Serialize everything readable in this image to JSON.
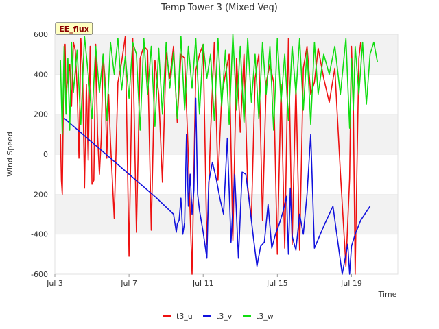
{
  "chart_data": {
    "type": "line",
    "title": "Temp Tower 3 (Mixed Veg)",
    "badge": "EE_flux",
    "xlabel": "Time",
    "ylabel": "Wind Speed",
    "xlim": [
      3,
      21.5
    ],
    "ylim": [
      -600,
      600
    ],
    "x_ticks": [
      3,
      7,
      11,
      15,
      19
    ],
    "x_tick_labels": [
      "Jul 3",
      "Jul 7",
      "Jul 11",
      "Jul 15",
      "Jul 19"
    ],
    "y_ticks": [
      -600,
      -400,
      -200,
      0,
      200,
      400,
      600
    ],
    "y_tick_labels": [
      "-600",
      "-400",
      "-200",
      "0",
      "200",
      "400",
      "600"
    ],
    "grid_bands": true,
    "legend_position": "bottom-center",
    "series": [
      {
        "name": "t3_u",
        "color": "#ee1111",
        "x": [
          3.3,
          3.35,
          3.4,
          3.45,
          3.5,
          3.55,
          3.6,
          3.7,
          3.8,
          3.9,
          4.0,
          4.1,
          4.2,
          4.3,
          4.4,
          4.5,
          4.6,
          4.7,
          4.8,
          4.9,
          5.0,
          5.1,
          5.2,
          5.3,
          5.4,
          5.5,
          5.6,
          5.7,
          5.8,
          5.9,
          6.0,
          6.2,
          6.4,
          6.6,
          6.8,
          7.0,
          7.2,
          7.4,
          7.6,
          7.8,
          8.0,
          8.2,
          8.4,
          8.6,
          8.8,
          9.0,
          9.2,
          9.4,
          9.6,
          9.8,
          10.0,
          10.2,
          10.4,
          10.6,
          10.8,
          11.0,
          11.2,
          11.4,
          11.6,
          11.8,
          12.0,
          12.2,
          12.4,
          12.6,
          12.8,
          13.0,
          13.2,
          13.4,
          13.6,
          13.8,
          14.0,
          14.2,
          14.4,
          14.6,
          14.8,
          15.0,
          15.2,
          15.4,
          15.6,
          15.8,
          16.0,
          16.2,
          16.4,
          16.6,
          16.8,
          17.0,
          17.2,
          17.5,
          17.8,
          18.1,
          18.4,
          18.7,
          18.9,
          19.0,
          19.1,
          19.2,
          19.3,
          19.4,
          19.5
        ],
        "values": [
          100,
          -130,
          -200,
          200,
          370,
          550,
          300,
          380,
          450,
          240,
          560,
          520,
          330,
          -20,
          580,
          400,
          -170,
          350,
          -30,
          540,
          -150,
          -130,
          550,
          100,
          -100,
          80,
          500,
          380,
          -20,
          300,
          60,
          -320,
          360,
          460,
          590,
          -510,
          580,
          -390,
          480,
          540,
          520,
          -380,
          470,
          300,
          -140,
          510,
          380,
          540,
          160,
          500,
          480,
          -10,
          -600,
          420,
          500,
          550,
          -450,
          110,
          560,
          -130,
          290,
          400,
          500,
          -430,
          480,
          110,
          500,
          -160,
          -320,
          380,
          500,
          -330,
          360,
          450,
          360,
          -500,
          350,
          -470,
          580,
          -450,
          360,
          -480,
          430,
          540,
          300,
          360,
          530,
          380,
          260,
          430,
          -90,
          -560,
          -120,
          540,
          250,
          -600,
          -50,
          480,
          560
        ]
      },
      {
        "name": "t3_v",
        "color": "#1111dd",
        "x": [
          3.5,
          4.5,
          5.5,
          6.5,
          7.5,
          8.5,
          9.4,
          9.5,
          9.55,
          9.6,
          9.7,
          9.8,
          9.9,
          10.0,
          10.1,
          10.2,
          10.3,
          10.4,
          10.5,
          10.6,
          10.7,
          10.8,
          11.0,
          11.2,
          11.3,
          11.5,
          11.7,
          11.9,
          12.1,
          12.3,
          12.5,
          12.7,
          12.9,
          13.1,
          13.3,
          13.5,
          13.7,
          13.9,
          14.1,
          14.3,
          14.5,
          14.7,
          14.9,
          15.1,
          15.3,
          15.5,
          15.6,
          15.7,
          15.8,
          16.0,
          16.2,
          16.4,
          16.6,
          16.8,
          17.0,
          17.5,
          18.0,
          18.5,
          18.8,
          18.9,
          19.0,
          19.2,
          19.5,
          20.0
        ],
        "values": [
          180,
          100,
          20,
          -60,
          -140,
          -220,
          -300,
          -360,
          -390,
          -350,
          -330,
          -220,
          -400,
          -340,
          100,
          -260,
          -100,
          -300,
          -180,
          280,
          -200,
          -280,
          -390,
          -520,
          -140,
          -40,
          -120,
          -220,
          -300,
          80,
          -440,
          -100,
          -520,
          -90,
          -100,
          -250,
          -410,
          -560,
          -460,
          -440,
          -250,
          -470,
          -400,
          -350,
          -290,
          -210,
          -500,
          -170,
          -410,
          -480,
          -300,
          -400,
          -200,
          100,
          -470,
          -360,
          -260,
          -600,
          -450,
          -600,
          -460,
          -400,
          -330,
          -260
        ]
      },
      {
        "name": "t3_w",
        "color": "#11dd11",
        "x": [
          3.3,
          3.4,
          3.5,
          3.6,
          3.7,
          3.8,
          3.9,
          4.0,
          4.2,
          4.4,
          4.6,
          4.8,
          5.0,
          5.2,
          5.4,
          5.6,
          5.8,
          6.0,
          6.2,
          6.4,
          6.6,
          6.8,
          7.0,
          7.2,
          7.4,
          7.6,
          7.8,
          8.0,
          8.2,
          8.4,
          8.6,
          8.8,
          9.0,
          9.2,
          9.4,
          9.6,
          9.8,
          10.0,
          10.2,
          10.4,
          10.6,
          10.8,
          11.0,
          11.2,
          11.4,
          11.6,
          11.8,
          12.0,
          12.2,
          12.4,
          12.6,
          12.8,
          13.0,
          13.2,
          13.4,
          13.6,
          13.8,
          14.0,
          14.2,
          14.4,
          14.6,
          14.8,
          15.0,
          15.2,
          15.4,
          15.6,
          15.8,
          16.0,
          16.2,
          16.4,
          16.6,
          16.8,
          17.0,
          17.2,
          17.5,
          17.8,
          18.1,
          18.4,
          18.7,
          18.9,
          19.0,
          19.1,
          19.2,
          19.4,
          19.6,
          19.8,
          20.0,
          20.2,
          20.4
        ],
        "values": [
          470,
          100,
          540,
          200,
          480,
          120,
          560,
          310,
          520,
          150,
          590,
          400,
          180,
          540,
          310,
          500,
          170,
          560,
          400,
          580,
          320,
          490,
          280,
          560,
          500,
          120,
          580,
          300,
          540,
          140,
          530,
          200,
          560,
          330,
          510,
          180,
          590,
          220,
          540,
          330,
          580,
          200,
          550,
          380,
          500,
          170,
          580,
          240,
          520,
          150,
          600,
          220,
          540,
          160,
          580,
          260,
          500,
          180,
          560,
          300,
          540,
          120,
          580,
          260,
          500,
          170,
          540,
          300,
          580,
          220,
          520,
          150,
          560,
          300,
          500,
          400,
          540,
          300,
          580,
          130,
          480,
          220,
          540,
          300,
          560,
          250,
          500,
          560,
          460
        ]
      }
    ]
  }
}
